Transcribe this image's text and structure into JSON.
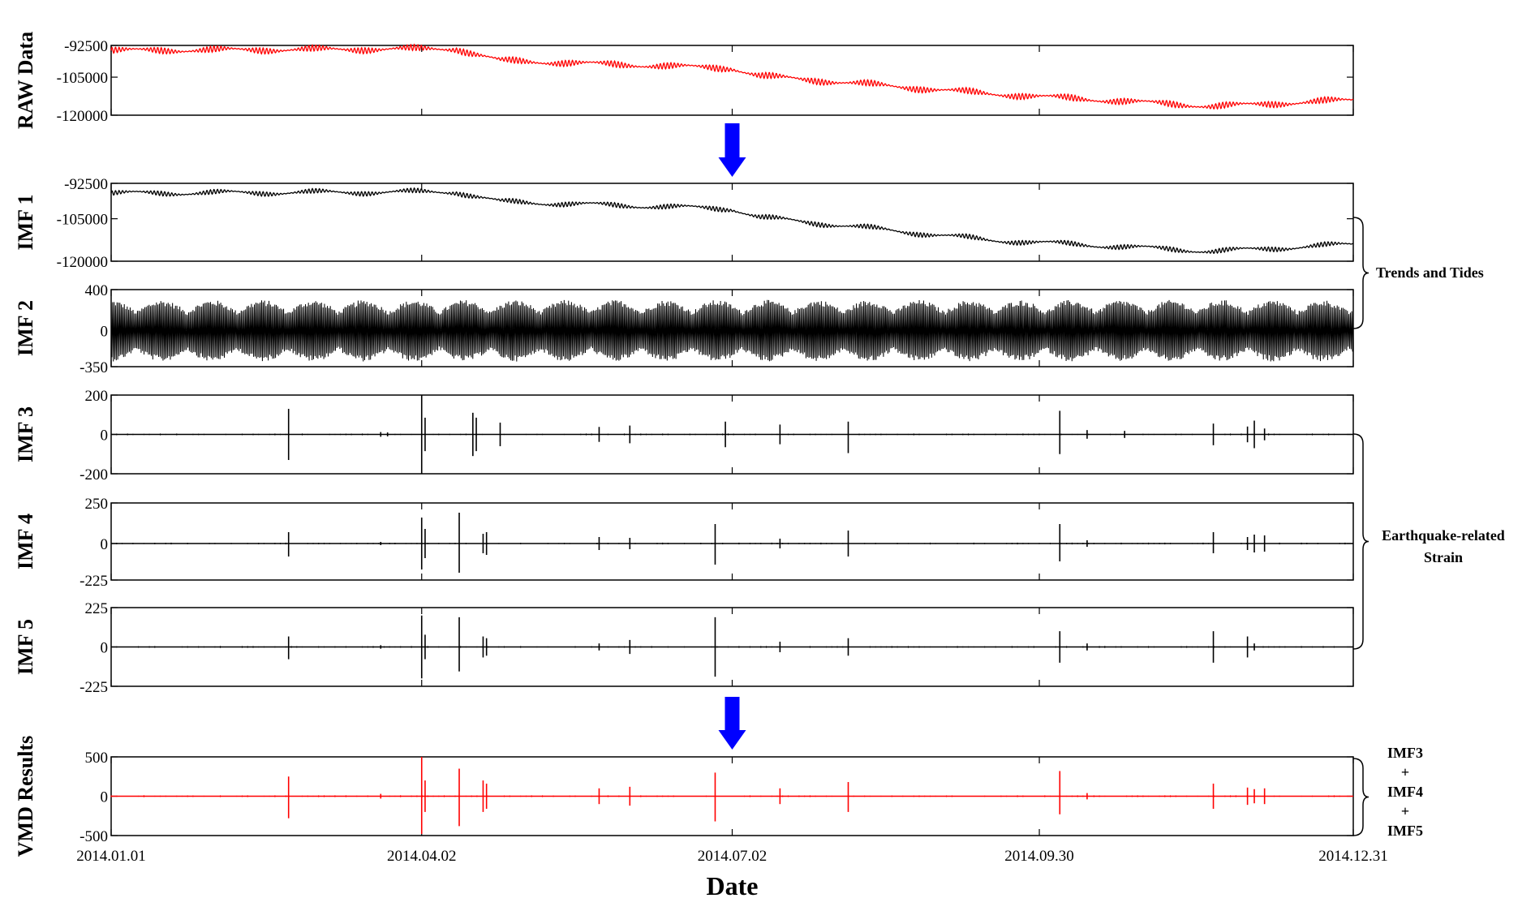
{
  "chart_data": {
    "type": "line",
    "xlabel": "Date",
    "x_range": [
      "2014.01.01",
      "2014.12.31"
    ],
    "x_ticks": [
      "2014.01.01",
      "2014.04.02",
      "2014.07.02",
      "2014.09.30",
      "2014.12.31"
    ],
    "grid": false,
    "legend": "none",
    "panels": [
      {
        "id": "raw",
        "ylabel": "RAW Data",
        "color": "#ff0000",
        "ylim": [
          -120000,
          -92500
        ],
        "yticks": [
          "-92500",
          "-105000",
          "-120000"
        ],
        "kind": "trend",
        "trend_x": [
          "2014.01.01",
          "2014.04.12",
          "2014.04.25",
          "2014.07.02",
          "2014.07.10",
          "2014.09.15",
          "2014.11.20",
          "2014.12.31"
        ],
        "trend_y": [
          -94500,
          -93800,
          -98500,
          -101500,
          -104500,
          -111500,
          -116500,
          -114000
        ],
        "oscillation_amplitude": 1200
      },
      {
        "id": "imf1",
        "ylabel": "IMF 1",
        "color": "#000000",
        "ylim": [
          -120000,
          -92500
        ],
        "yticks": [
          "-92500",
          "-105000",
          "-120000"
        ],
        "kind": "trend",
        "trend_x": [
          "2014.01.01",
          "2014.04.12",
          "2014.04.25",
          "2014.07.02",
          "2014.07.10",
          "2014.09.15",
          "2014.11.20",
          "2014.12.31"
        ],
        "trend_y": [
          -96000,
          -95500,
          -99000,
          -101500,
          -104500,
          -112500,
          -116500,
          -114000
        ],
        "oscillation_amplitude": 800
      },
      {
        "id": "imf2",
        "ylabel": "IMF 2",
        "color": "#000000",
        "ylim": [
          -350,
          400
        ],
        "yticks": [
          "400",
          "0",
          "-350"
        ],
        "kind": "oscillation",
        "amplitude_max": 300,
        "envelope_period_days": 14.8
      },
      {
        "id": "imf3",
        "ylabel": "IMF 3",
        "color": "#000000",
        "ylim": [
          -200,
          200
        ],
        "yticks": [
          "200",
          "0",
          "-200"
        ],
        "kind": "spikes",
        "spikes": [
          {
            "date": "2014.02.22",
            "up": 130,
            "down": -130
          },
          {
            "date": "2014.03.21",
            "up": 12,
            "down": -12
          },
          {
            "date": "2014.03.23",
            "up": 10,
            "down": -10
          },
          {
            "date": "2014.04.02",
            "up": 200,
            "down": -200
          },
          {
            "date": "2014.04.03",
            "up": 85,
            "down": -85
          },
          {
            "date": "2014.04.17",
            "up": 110,
            "down": -110
          },
          {
            "date": "2014.04.18",
            "up": 85,
            "down": -85
          },
          {
            "date": "2014.04.25",
            "up": 60,
            "down": -60
          },
          {
            "date": "2014.05.24",
            "up": 38,
            "down": -38
          },
          {
            "date": "2014.06.02",
            "up": 45,
            "down": -45
          },
          {
            "date": "2014.06.30",
            "up": 65,
            "down": -65
          },
          {
            "date": "2014.07.16",
            "up": 50,
            "down": -50
          },
          {
            "date": "2014.08.05",
            "up": 65,
            "down": -95
          },
          {
            "date": "2014.10.06",
            "up": 120,
            "down": -100
          },
          {
            "date": "2014.10.14",
            "up": 22,
            "down": -22
          },
          {
            "date": "2014.10.25",
            "up": 18,
            "down": -18
          },
          {
            "date": "2014.11.20",
            "up": 55,
            "down": -55
          },
          {
            "date": "2014.11.30",
            "up": 40,
            "down": -40
          },
          {
            "date": "2014.12.02",
            "up": 70,
            "down": -70
          },
          {
            "date": "2014.12.05",
            "up": 30,
            "down": -30
          }
        ]
      },
      {
        "id": "imf4",
        "ylabel": "IMF 4",
        "color": "#000000",
        "ylim": [
          -225,
          250
        ],
        "yticks": [
          "250",
          "0",
          "-225"
        ],
        "kind": "spikes",
        "spikes": [
          {
            "date": "2014.02.22",
            "up": 70,
            "down": -80
          },
          {
            "date": "2014.03.21",
            "up": 10,
            "down": -10
          },
          {
            "date": "2014.04.02",
            "up": 160,
            "down": -160
          },
          {
            "date": "2014.04.03",
            "up": 90,
            "down": -90
          },
          {
            "date": "2014.04.13",
            "up": 190,
            "down": -180
          },
          {
            "date": "2014.04.20",
            "up": 60,
            "down": -60
          },
          {
            "date": "2014.04.21",
            "up": 70,
            "down": -70
          },
          {
            "date": "2014.05.24",
            "up": 40,
            "down": -40
          },
          {
            "date": "2014.06.02",
            "up": 35,
            "down": -35
          },
          {
            "date": "2014.06.27",
            "up": 120,
            "down": -130
          },
          {
            "date": "2014.07.16",
            "up": 30,
            "down": -30
          },
          {
            "date": "2014.08.05",
            "up": 80,
            "down": -80
          },
          {
            "date": "2014.10.06",
            "up": 120,
            "down": -110
          },
          {
            "date": "2014.10.14",
            "up": 20,
            "down": -20
          },
          {
            "date": "2014.11.20",
            "up": 70,
            "down": -60
          },
          {
            "date": "2014.11.30",
            "up": 40,
            "down": -40
          },
          {
            "date": "2014.12.02",
            "up": 55,
            "down": -55
          },
          {
            "date": "2014.12.05",
            "up": 50,
            "down": -50
          }
        ]
      },
      {
        "id": "imf5",
        "ylabel": "IMF 5",
        "color": "#000000",
        "ylim": [
          -225,
          225
        ],
        "yticks": [
          "225",
          "0",
          "-225"
        ],
        "kind": "spikes",
        "spikes": [
          {
            "date": "2014.02.22",
            "up": 60,
            "down": -70
          },
          {
            "date": "2014.03.21",
            "up": 10,
            "down": -10
          },
          {
            "date": "2014.04.02",
            "up": 180,
            "down": -180
          },
          {
            "date": "2014.04.03",
            "up": 70,
            "down": -70
          },
          {
            "date": "2014.04.13",
            "up": 170,
            "down": -140
          },
          {
            "date": "2014.04.20",
            "up": 60,
            "down": -60
          },
          {
            "date": "2014.04.21",
            "up": 50,
            "down": -50
          },
          {
            "date": "2014.05.24",
            "up": 20,
            "down": -20
          },
          {
            "date": "2014.06.02",
            "up": 40,
            "down": -40
          },
          {
            "date": "2014.06.27",
            "up": 170,
            "down": -170
          },
          {
            "date": "2014.07.16",
            "up": 30,
            "down": -30
          },
          {
            "date": "2014.08.05",
            "up": 50,
            "down": -50
          },
          {
            "date": "2014.10.06",
            "up": 90,
            "down": -90
          },
          {
            "date": "2014.10.14",
            "up": 20,
            "down": -20
          },
          {
            "date": "2014.11.20",
            "up": 90,
            "down": -90
          },
          {
            "date": "2014.11.30",
            "up": 60,
            "down": -60
          },
          {
            "date": "2014.12.02",
            "up": 20,
            "down": -20
          }
        ]
      },
      {
        "id": "vmd",
        "ylabel": "VMD Results",
        "color": "#ff0000",
        "ylim": [
          -500,
          500
        ],
        "yticks": [
          "500",
          "0",
          "-500"
        ],
        "kind": "spikes",
        "spikes": [
          {
            "date": "2014.02.22",
            "up": 250,
            "down": -280
          },
          {
            "date": "2014.03.21",
            "up": 30,
            "down": -30
          },
          {
            "date": "2014.04.02",
            "up": 500,
            "down": -480
          },
          {
            "date": "2014.04.03",
            "up": 200,
            "down": -200
          },
          {
            "date": "2014.04.13",
            "up": 350,
            "down": -380
          },
          {
            "date": "2014.04.20",
            "up": 200,
            "down": -200
          },
          {
            "date": "2014.04.21",
            "up": 160,
            "down": -160
          },
          {
            "date": "2014.05.24",
            "up": 100,
            "down": -100
          },
          {
            "date": "2014.06.02",
            "up": 120,
            "down": -120
          },
          {
            "date": "2014.06.27",
            "up": 300,
            "down": -320
          },
          {
            "date": "2014.07.16",
            "up": 100,
            "down": -100
          },
          {
            "date": "2014.08.05",
            "up": 180,
            "down": -200
          },
          {
            "date": "2014.10.06",
            "up": 320,
            "down": -230
          },
          {
            "date": "2014.10.14",
            "up": 40,
            "down": -40
          },
          {
            "date": "2014.11.20",
            "up": 160,
            "down": -160
          },
          {
            "date": "2014.11.30",
            "up": 110,
            "down": -110
          },
          {
            "date": "2014.12.02",
            "up": 90,
            "down": -90
          },
          {
            "date": "2014.12.05",
            "up": 100,
            "down": -100
          }
        ]
      }
    ],
    "annotations": {
      "trends_and_tides": "Trends and Tides",
      "earthquake_line1": "Earthquake-related",
      "earthquake_line2": "Strain",
      "vmd_sum": [
        "IMF3",
        "+",
        "IMF4",
        "+",
        "IMF5"
      ]
    },
    "arrow_color": "#0000ff"
  }
}
